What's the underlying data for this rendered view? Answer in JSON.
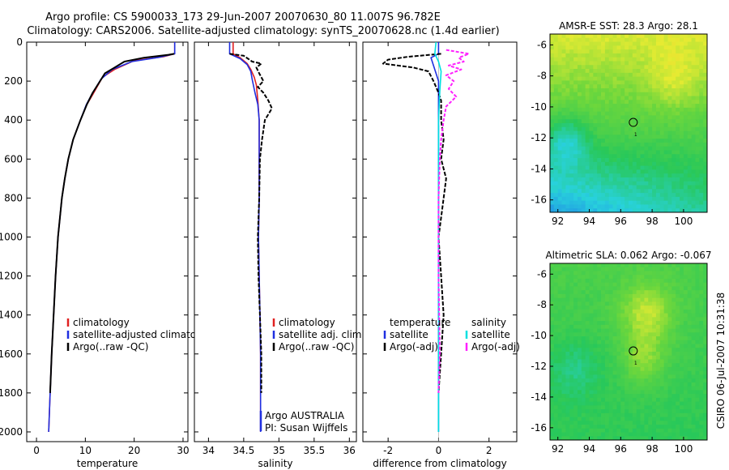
{
  "header": {
    "line1": "Argo profile: CS 5900033_173 29-Jun-2007 20070630_80 11.007S 96.782E",
    "line2": "Climatology: CARS2006. Satellite-adjusted climatology: synTS_20070628.nc (1.4d earlier)"
  },
  "side_label": "CSIRO 06-Jul-2007 10:31:38",
  "colors": {
    "climatology": "#e02020",
    "satellite": "#1f2fe0",
    "argo": "#000000",
    "sat_cyan": "#00e0e0",
    "argo_magenta": "#ff20ff"
  },
  "chart_data": [
    {
      "type": "line",
      "name": "temperature",
      "xlabel": "temperature",
      "xlim": [
        -2,
        31
      ],
      "ylim": [
        0,
        2050
      ],
      "xticks": [
        0,
        10,
        20,
        30
      ],
      "yticks": [
        0,
        200,
        400,
        600,
        800,
        1000,
        1200,
        1400,
        1600,
        1800,
        2000
      ],
      "y_reversed": true,
      "legend": [
        "climatology",
        "satellite-adjusted climatology",
        "Argo(..raw -QC)"
      ],
      "series": [
        {
          "name": "climatology",
          "color_key": "climatology",
          "points": [
            [
              28.3,
              0
            ],
            [
              28.3,
              60
            ],
            [
              26,
              75
            ],
            [
              20,
              95
            ],
            [
              16,
              140
            ],
            [
              13.5,
              180
            ],
            [
              11.5,
              270
            ],
            [
              10.3,
              320
            ],
            [
              9,
              400
            ],
            [
              7.5,
              500
            ],
            [
              6.5,
              600
            ],
            [
              5.8,
              700
            ],
            [
              5.2,
              800
            ],
            [
              4.8,
              900
            ],
            [
              4.4,
              1000
            ],
            [
              3.9,
              1200
            ],
            [
              3.5,
              1400
            ],
            [
              3.1,
              1600
            ],
            [
              2.8,
              1800
            ],
            [
              2.5,
              2000
            ]
          ]
        },
        {
          "name": "satellite-adjusted climatology",
          "color_key": "satellite",
          "points": [
            [
              28.3,
              0
            ],
            [
              28.3,
              60
            ],
            [
              25,
              78
            ],
            [
              19.5,
              100
            ],
            [
              15.5,
              140
            ],
            [
              13.2,
              190
            ],
            [
              11.3,
              270
            ],
            [
              10.2,
              320
            ],
            [
              9,
              400
            ],
            [
              7.5,
              500
            ],
            [
              6.5,
              600
            ],
            [
              5.8,
              700
            ],
            [
              5.2,
              800
            ],
            [
              4.8,
              900
            ],
            [
              4.4,
              1000
            ],
            [
              3.9,
              1200
            ],
            [
              3.5,
              1400
            ],
            [
              3.1,
              1600
            ],
            [
              2.8,
              1800
            ],
            [
              2.5,
              2000
            ]
          ]
        },
        {
          "name": "Argo(..raw -QC)",
          "color_key": "argo",
          "points": [
            [
              28.2,
              60
            ],
            [
              27,
              65
            ],
            [
              22,
              80
            ],
            [
              18,
              100
            ],
            [
              16,
              130
            ],
            [
              14,
              160
            ],
            [
              13,
              200
            ],
            [
              11.5,
              260
            ],
            [
              10.3,
              320
            ],
            [
              9,
              400
            ],
            [
              7.5,
              500
            ],
            [
              6.5,
              600
            ],
            [
              5.8,
              700
            ],
            [
              5.2,
              800
            ],
            [
              4.8,
              900
            ],
            [
              4.4,
              1000
            ],
            [
              3.9,
              1200
            ],
            [
              3.5,
              1400
            ],
            [
              3.1,
              1600
            ],
            [
              2.8,
              1800
            ]
          ]
        }
      ]
    },
    {
      "type": "line",
      "name": "salinity",
      "xlabel": "salinity",
      "xlim": [
        33.8,
        36.1
      ],
      "ylim": [
        0,
        2050
      ],
      "xticks": [
        34,
        34.5,
        35,
        35.5,
        36
      ],
      "yticks": [
        0,
        200,
        400,
        600,
        800,
        1000,
        1200,
        1400,
        1600,
        1800,
        2000
      ],
      "y_reversed": true,
      "legend": [
        "climatology",
        "satellite adj. clim.",
        "Argo(..raw -QC)"
      ],
      "annotations": [
        "Argo AUSTRALIA",
        "PI: Susan Wijffels"
      ],
      "series": [
        {
          "name": "climatology",
          "color_key": "climatology",
          "points": [
            [
              34.35,
              0
            ],
            [
              34.35,
              60
            ],
            [
              34.45,
              80
            ],
            [
              34.55,
              110
            ],
            [
              34.6,
              140
            ],
            [
              34.65,
              180
            ],
            [
              34.68,
              220
            ],
            [
              34.7,
              300
            ],
            [
              34.72,
              400
            ],
            [
              34.72,
              600
            ],
            [
              34.72,
              800
            ],
            [
              34.71,
              1000
            ],
            [
              34.72,
              1200
            ],
            [
              34.73,
              1400
            ],
            [
              34.74,
              1600
            ],
            [
              34.74,
              1800
            ],
            [
              34.74,
              2000
            ]
          ]
        },
        {
          "name": "satellite adj. clim.",
          "color_key": "satellite",
          "points": [
            [
              34.3,
              0
            ],
            [
              34.3,
              60
            ],
            [
              34.45,
              85
            ],
            [
              34.55,
              115
            ],
            [
              34.6,
              150
            ],
            [
              34.62,
              190
            ],
            [
              34.66,
              260
            ],
            [
              34.7,
              320
            ],
            [
              34.72,
              400
            ],
            [
              34.72,
              600
            ],
            [
              34.72,
              800
            ],
            [
              34.71,
              1000
            ],
            [
              34.72,
              1200
            ],
            [
              34.73,
              1400
            ],
            [
              34.74,
              1600
            ],
            [
              34.74,
              1800
            ],
            [
              34.74,
              2000
            ]
          ]
        },
        {
          "name": "Argo(..raw -QC)",
          "color_key": "argo",
          "points": [
            [
              34.3,
              60
            ],
            [
              34.5,
              70
            ],
            [
              34.62,
              100
            ],
            [
              34.75,
              110
            ],
            [
              34.68,
              130
            ],
            [
              34.72,
              160
            ],
            [
              34.78,
              200
            ],
            [
              34.7,
              230
            ],
            [
              34.78,
              260
            ],
            [
              34.85,
              300
            ],
            [
              34.9,
              340
            ],
            [
              34.8,
              400
            ],
            [
              34.76,
              500
            ],
            [
              34.73,
              600
            ],
            [
              34.72,
              800
            ],
            [
              34.7,
              1000
            ],
            [
              34.71,
              1200
            ],
            [
              34.73,
              1400
            ],
            [
              34.75,
              1600
            ],
            [
              34.75,
              1800
            ]
          ]
        }
      ]
    },
    {
      "type": "line",
      "name": "difference",
      "xlabel": "difference from climatology",
      "xlim": [
        -3,
        3.1
      ],
      "ylim": [
        0,
        2050
      ],
      "xticks": [
        -2,
        0,
        2
      ],
      "yticks": [
        0,
        200,
        400,
        600,
        800,
        1000,
        1200,
        1400,
        1600,
        1800,
        2000
      ],
      "y_reversed": true,
      "legend_left_title": "temperature",
      "legend_right_title": "salinity",
      "legend_left": [
        "satellite",
        "Argo(-adj)"
      ],
      "legend_right": [
        "satellite",
        "Argo(-adj)"
      ],
      "series": [
        {
          "name": "temperature satellite",
          "color_key": "satellite",
          "points": [
            [
              0,
              0
            ],
            [
              0,
              60
            ],
            [
              -0.3,
              80
            ],
            [
              -0.2,
              120
            ],
            [
              0,
              200
            ],
            [
              0,
              400
            ],
            [
              0,
              800
            ],
            [
              0,
              1200
            ],
            [
              0,
              1600
            ],
            [
              0,
              2000
            ]
          ]
        },
        {
          "name": "temperature Argo(-adj)",
          "color_key": "argo",
          "points": [
            [
              0.1,
              60
            ],
            [
              -1.2,
              75
            ],
            [
              -2,
              90
            ],
            [
              -2.2,
              110
            ],
            [
              -1,
              130
            ],
            [
              -0.4,
              150
            ],
            [
              -0.2,
              200
            ],
            [
              0,
              260
            ],
            [
              0.1,
              300
            ],
            [
              0.1,
              400
            ],
            [
              0.2,
              500
            ],
            [
              0.1,
              600
            ],
            [
              0.3,
              700
            ],
            [
              0.2,
              800
            ],
            [
              0.1,
              900
            ],
            [
              0,
              1000
            ],
            [
              0.1,
              1200
            ],
            [
              0.2,
              1400
            ],
            [
              0.1,
              1600
            ],
            [
              0,
              1800
            ]
          ]
        },
        {
          "name": "salinity satellite",
          "color_key": "sat_cyan",
          "points": [
            [
              -0.1,
              0
            ],
            [
              -0.15,
              60
            ],
            [
              0,
              100
            ],
            [
              0.1,
              150
            ],
            [
              0.05,
              250
            ],
            [
              0,
              400
            ],
            [
              0,
              800
            ],
            [
              0,
              1200
            ],
            [
              0,
              1600
            ],
            [
              0,
              2000
            ]
          ]
        },
        {
          "name": "salinity Argo(-adj)",
          "color_key": "argo_magenta",
          "points": [
            [
              0.3,
              40
            ],
            [
              1.2,
              60
            ],
            [
              0.8,
              80
            ],
            [
              1,
              100
            ],
            [
              0.4,
              120
            ],
            [
              0.9,
              140
            ],
            [
              0.3,
              170
            ],
            [
              0.6,
              200
            ],
            [
              0.4,
              240
            ],
            [
              0.7,
              280
            ],
            [
              0.3,
              330
            ],
            [
              0.2,
              400
            ],
            [
              0.1,
              500
            ],
            [
              0.05,
              600
            ],
            [
              0,
              800
            ],
            [
              0,
              1200
            ],
            [
              0.05,
              1600
            ],
            [
              0,
              1800
            ]
          ]
        }
      ]
    },
    {
      "type": "heatmap",
      "name": "sst-map",
      "title": "AMSR-E SST: 28.3 Argo: 28.1",
      "xlim": [
        91.5,
        101.5
      ],
      "ylim": [
        -16.8,
        -5.3
      ],
      "xticks": [
        92,
        94,
        96,
        98,
        100
      ],
      "yticks": [
        -6,
        -8,
        -10,
        -12,
        -14,
        -16
      ],
      "marker": [
        96.8,
        -11.0
      ],
      "profile_label": "1"
    },
    {
      "type": "heatmap",
      "name": "sla-map",
      "title": "Altimetric SLA: 0.062 Argo: -0.067",
      "xlim": [
        91.5,
        101.5
      ],
      "ylim": [
        -16.8,
        -5.3
      ],
      "xticks": [
        92,
        94,
        96,
        98,
        100
      ],
      "yticks": [
        -6,
        -8,
        -10,
        -12,
        -14,
        -16
      ],
      "marker": [
        96.8,
        -11.0
      ],
      "profile_label": "1"
    }
  ]
}
